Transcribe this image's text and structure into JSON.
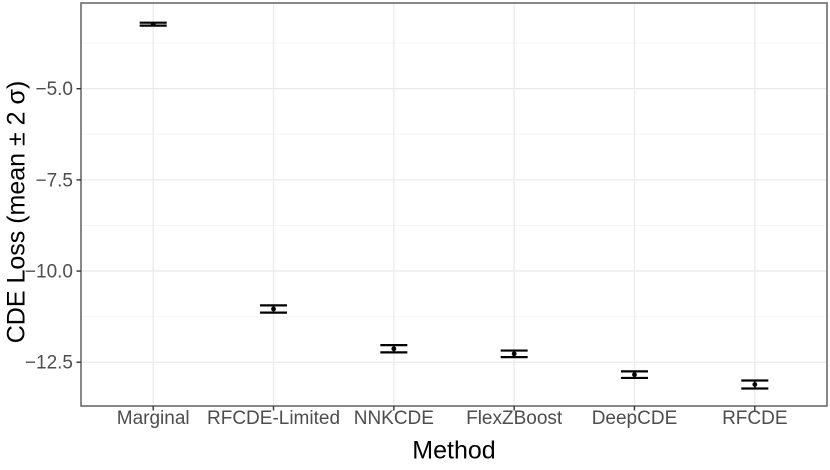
{
  "chart_data": {
    "type": "scatter",
    "subtype": "point-with-errorbars",
    "title": "",
    "xlabel": "Method",
    "ylabel": "CDE Loss (mean ± 2 σ)",
    "categories": [
      "Marginal",
      "RFCDE-Limited",
      "NNKCDE",
      "FlexZBoost",
      "DeepCDE",
      "RFCDE"
    ],
    "series": [
      {
        "name": "CDE Loss mean",
        "values": [
          -3.23,
          -11.04,
          -12.13,
          -12.27,
          -12.84,
          -13.11
        ],
        "errors_2sigma": [
          0.04,
          0.1,
          0.1,
          0.09,
          0.09,
          0.11
        ]
      }
    ],
    "ylim": [
      -13.7,
      -2.65
    ],
    "y_major_ticks": [
      -5.0,
      -7.5,
      -10.0,
      -12.5
    ],
    "y_tick_labels": [
      "−5.0",
      "−7.5",
      "−10.0",
      "−12.5"
    ],
    "y_minor_ticks": [
      -3.75,
      -6.25,
      -8.75,
      -11.25
    ],
    "grid": "major-and-minor-horizontal, vertical-at-categories",
    "legend": "none",
    "style": {
      "background": "#ffffff",
      "grid_major_color": "#ebebeb",
      "grid_minor_color": "#f6f6f6",
      "panel_border_color": "#6b6b6b",
      "tick_color": "#333333",
      "tick_label_color": "#4d4d4d",
      "axis_title_color": "#000000",
      "data_color": "#000000"
    }
  }
}
